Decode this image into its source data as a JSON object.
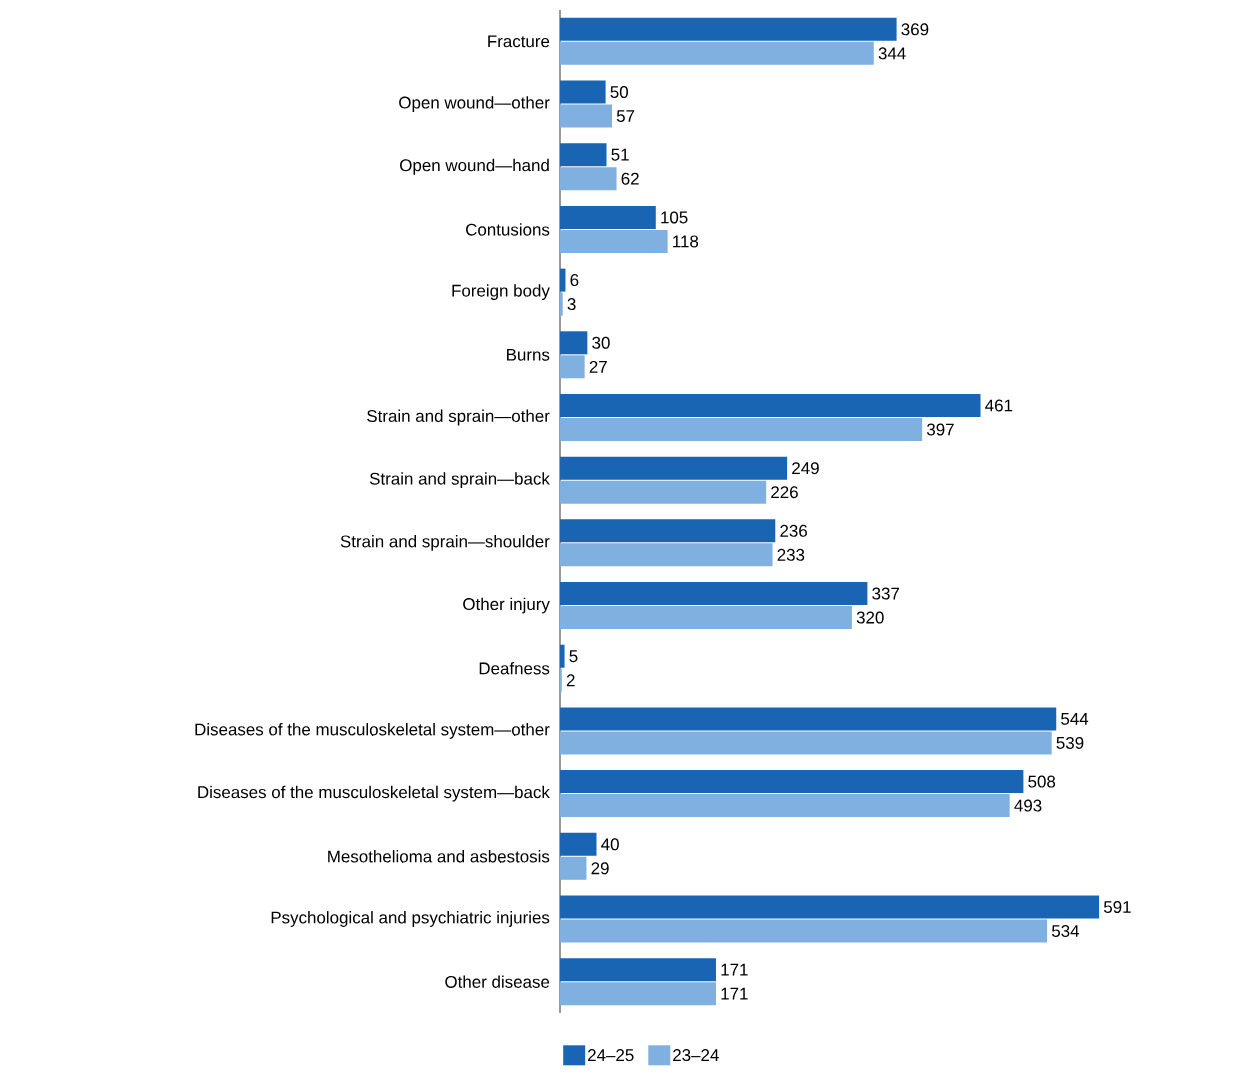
{
  "chart_data": {
    "type": "bar",
    "orientation": "horizontal",
    "categories": [
      "Fracture",
      "Open wound—other",
      "Open wound—hand",
      "Contusions",
      "Foreign body",
      "Burns",
      "Strain and sprain—other",
      "Strain and sprain—back",
      "Strain and sprain—shoulder",
      "Other injury",
      "Deafness",
      "Diseases of the musculoskeletal system—other",
      "Diseases of the musculoskeletal system—back",
      "Mesothelioma and asbestosis",
      "Psychological and psychiatric injuries",
      "Other disease"
    ],
    "series": [
      {
        "name": "24–25",
        "color": "#1a64b4",
        "values": [
          369,
          50,
          51,
          105,
          6,
          30,
          461,
          249,
          236,
          337,
          5,
          544,
          508,
          40,
          591,
          171
        ]
      },
      {
        "name": "23–24",
        "color": "#80b0e0",
        "values": [
          344,
          57,
          62,
          118,
          3,
          27,
          397,
          226,
          233,
          320,
          2,
          539,
          493,
          29,
          534,
          171
        ]
      }
    ],
    "tick_labels": "y",
    "legend": "bottom",
    "data_labels": true
  }
}
